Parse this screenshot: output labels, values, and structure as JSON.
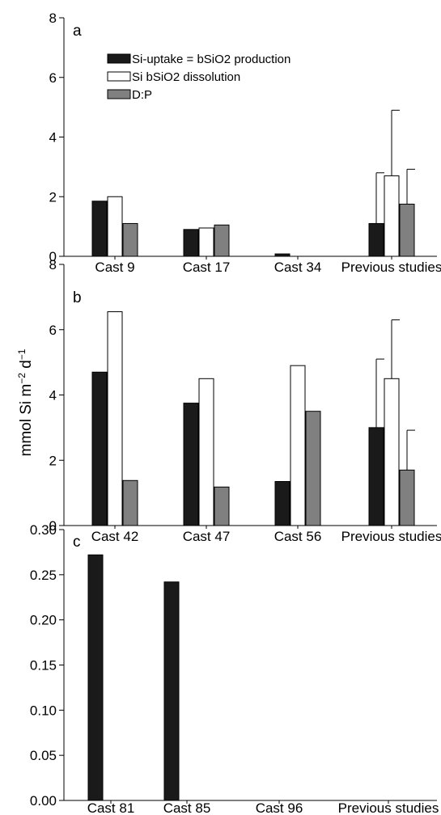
{
  "chart_data": [
    {
      "panel": "a",
      "type": "bar",
      "categories": [
        "Cast 9",
        "Cast 17",
        "Cast 34",
        "Previous studies"
      ],
      "ylim": [
        0,
        8
      ],
      "yticks": [
        "0",
        "2",
        "4",
        "6",
        "8"
      ],
      "series": [
        {
          "name": "Si-uptake = bSiO2 production",
          "color": "#1a1a1a",
          "values": [
            1.85,
            0.9,
            0.08,
            1.1
          ],
          "errors": [
            null,
            null,
            null,
            1.7
          ]
        },
        {
          "name": "Si bSiO2 dissolution",
          "color": "#ffffff",
          "values": [
            2.0,
            0.95,
            null,
            2.7
          ],
          "errors": [
            null,
            null,
            null,
            2.2
          ]
        },
        {
          "name": "D:P",
          "color": "#808080",
          "values": [
            1.1,
            1.05,
            null,
            1.75
          ],
          "errors": [
            null,
            null,
            null,
            1.17
          ]
        }
      ],
      "legend": "top-left"
    },
    {
      "panel": "b",
      "type": "bar",
      "categories": [
        "Cast 42",
        "Cast 47",
        "Cast 56",
        "Previous studies"
      ],
      "ylim": [
        0,
        8
      ],
      "yticks": [
        "0",
        "2",
        "4",
        "6",
        "8"
      ],
      "series": [
        {
          "name": "Si-uptake = bSiO2 production",
          "color": "#1a1a1a",
          "values": [
            4.7,
            3.75,
            1.35,
            3.0
          ],
          "errors": [
            null,
            null,
            null,
            2.1
          ]
        },
        {
          "name": "Si bSiO2 dissolution",
          "color": "#ffffff",
          "values": [
            6.55,
            4.5,
            4.9,
            4.5
          ],
          "errors": [
            null,
            null,
            null,
            1.8
          ]
        },
        {
          "name": "D:P",
          "color": "#808080",
          "values": [
            1.38,
            1.18,
            3.5,
            1.7
          ],
          "errors": [
            null,
            null,
            null,
            1.22
          ]
        }
      ]
    },
    {
      "panel": "c",
      "type": "bar",
      "categories": [
        "Cast 81",
        "Cast 85",
        "Cast 96",
        "Previous studies"
      ],
      "ylim": [
        0,
        0.3
      ],
      "yticks": [
        "0.00",
        "0.05",
        "0.10",
        "0.15",
        "0.20",
        "0.25",
        "0.30"
      ],
      "series": [
        {
          "name": "Si-uptake = bSiO2 production",
          "color": "#1a1a1a",
          "values": [
            0.272,
            0.242,
            null,
            null
          ],
          "errors": [
            null,
            null,
            null,
            null
          ]
        },
        {
          "name": "Si bSiO2 dissolution",
          "color": "#ffffff",
          "values": [
            null,
            null,
            null,
            null
          ],
          "errors": [
            null,
            null,
            null,
            null
          ]
        },
        {
          "name": "D:P",
          "color": "#808080",
          "values": [
            null,
            null,
            null,
            null
          ],
          "errors": [
            null,
            null,
            null,
            null
          ]
        }
      ]
    }
  ],
  "ylabel": {
    "main": "mmol Si m",
    "sup1": "−2",
    "mid": " d",
    "sup2": "−1"
  }
}
